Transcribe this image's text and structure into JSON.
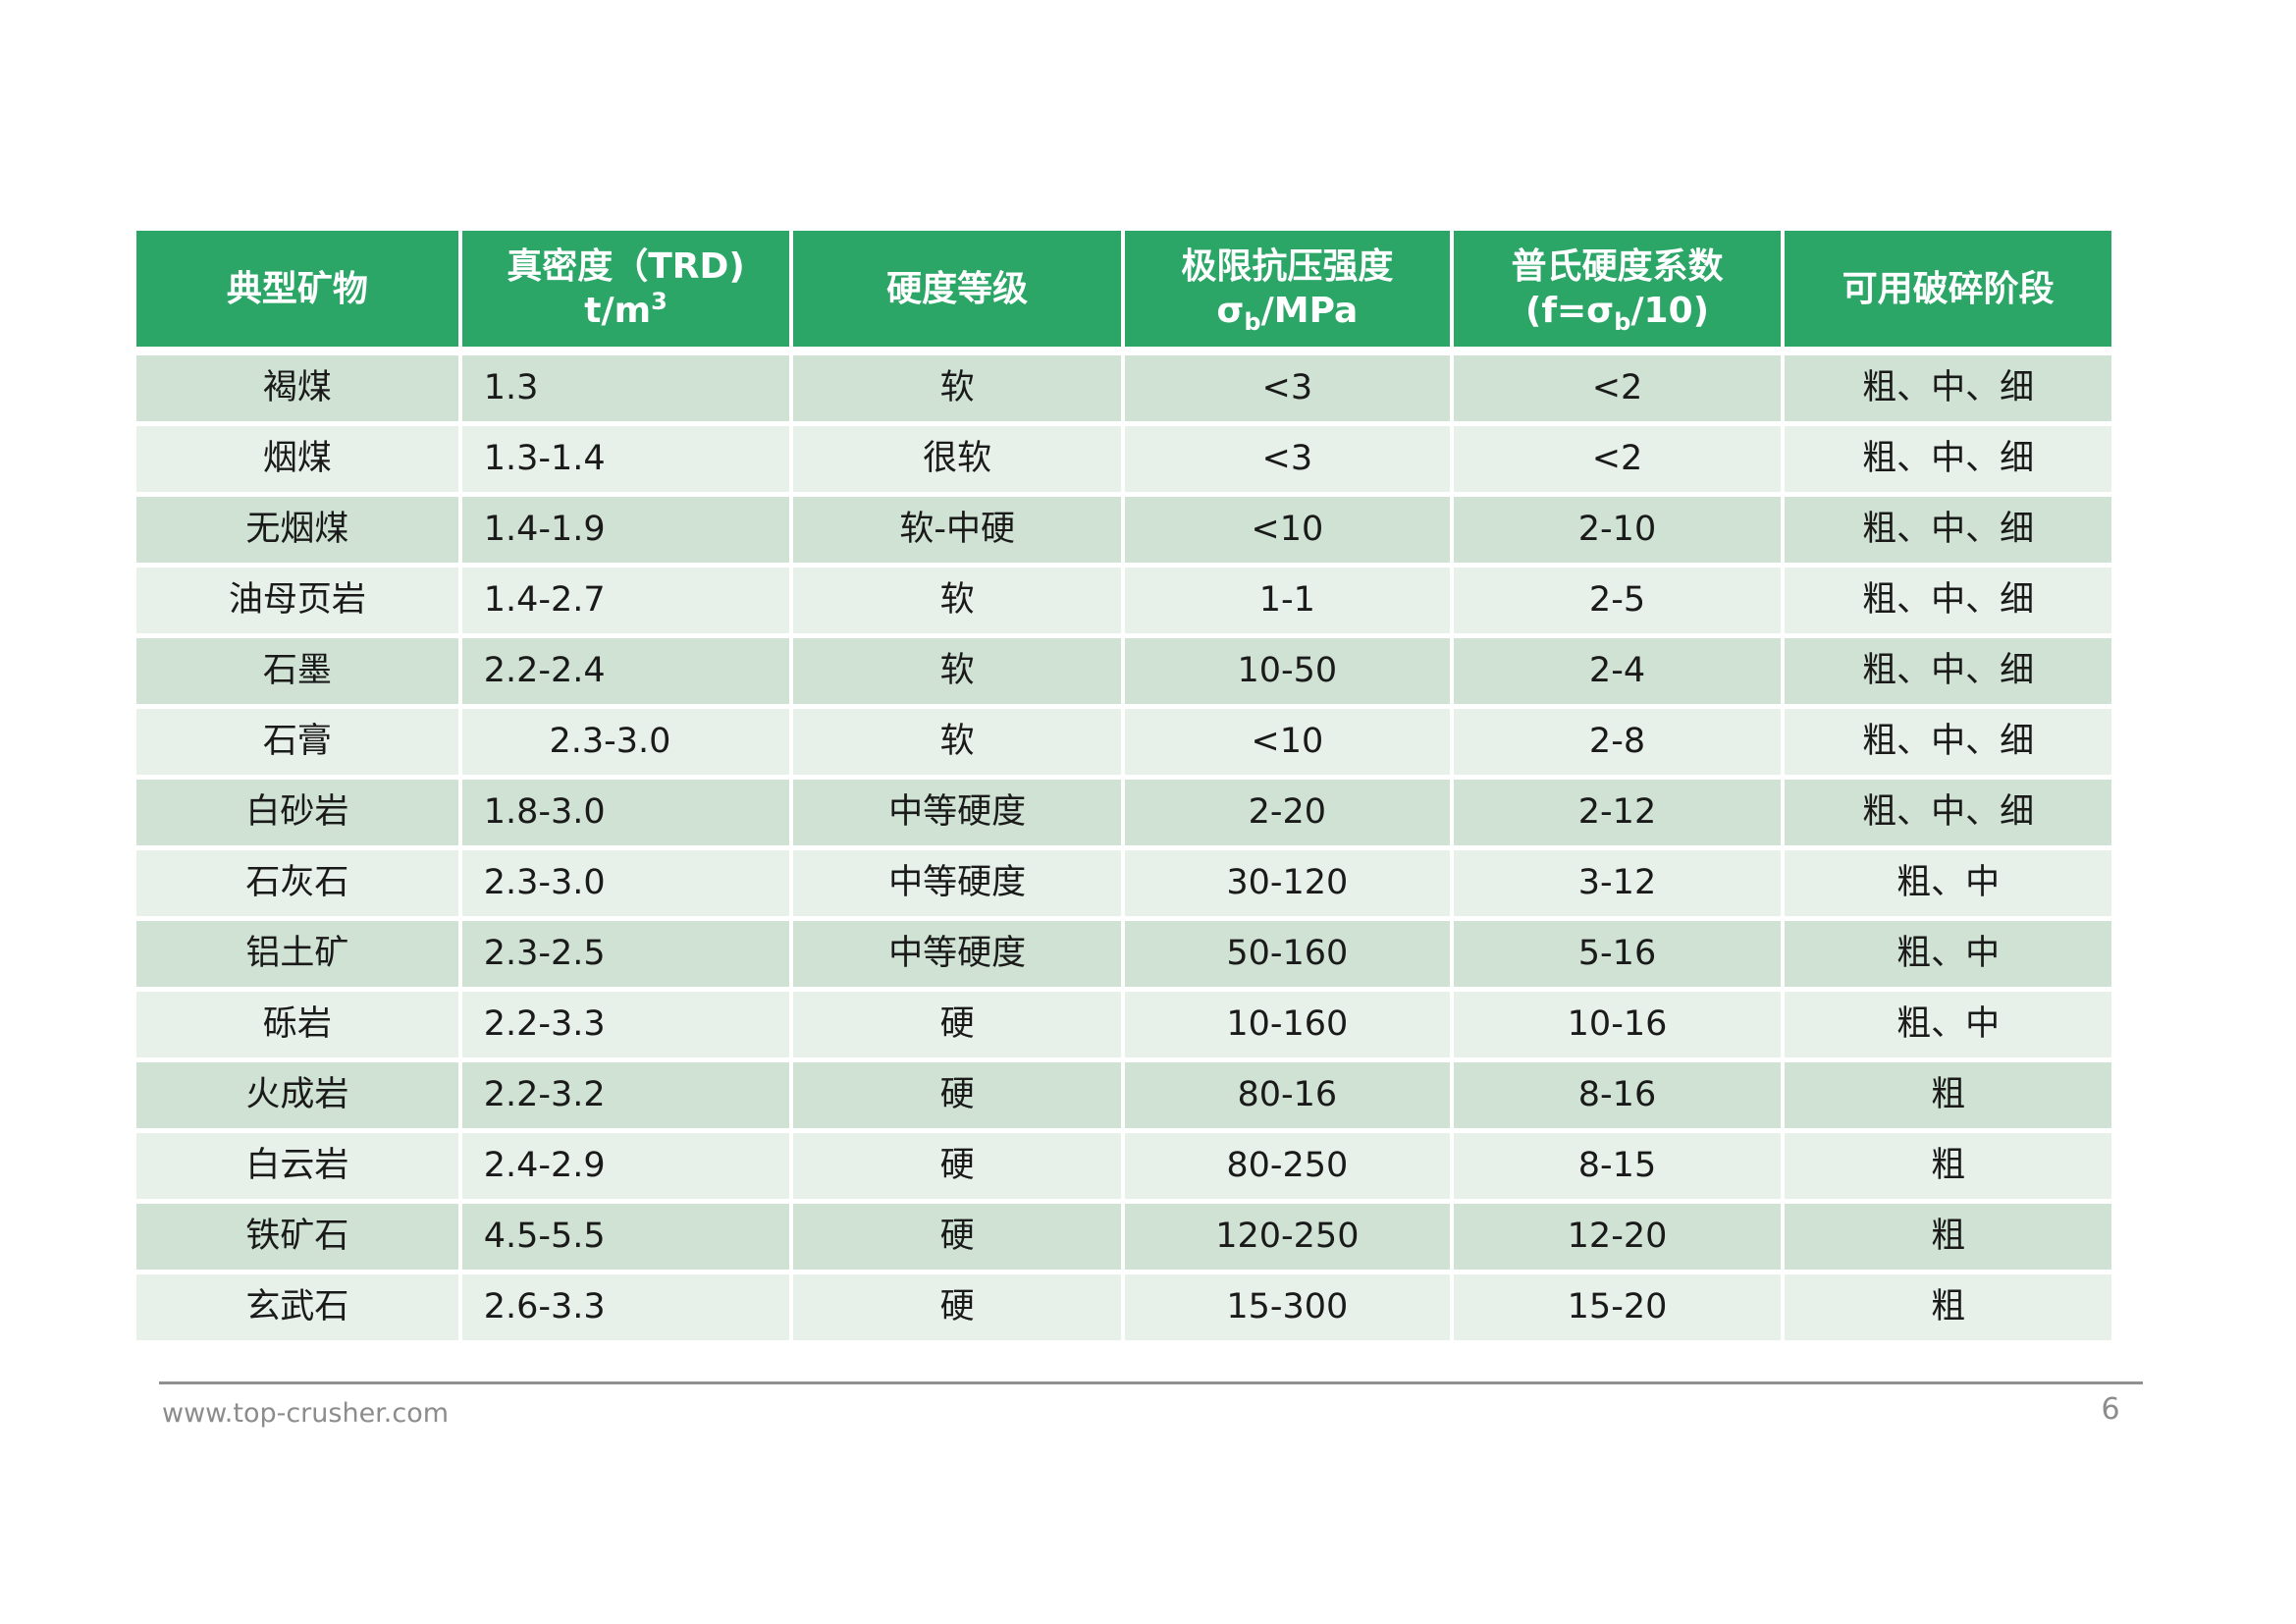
{
  "colors": {
    "header_bg": "#2ba667",
    "header_text": "#ffffff",
    "row_odd": "#cfe2d3",
    "row_even": "#e7f0e9",
    "body_text": "#1a1a1a",
    "footer_text": "#8c8c8c",
    "footer_line": "#909090"
  },
  "table": {
    "headers": [
      {
        "line1": "典型矿物"
      },
      {
        "line1": "真密度（TRD)",
        "line2": [
          {
            "t": "t/m"
          },
          {
            "t": "3",
            "pos": "sup"
          }
        ]
      },
      {
        "line1": "硬度等级"
      },
      {
        "line1": "极限抗压强度",
        "line2": [
          {
            "t": "σ"
          },
          {
            "t": "b",
            "pos": "sub"
          },
          {
            "t": "/MPa"
          }
        ]
      },
      {
        "line1": "普氏硬度系数",
        "line2": [
          {
            "t": "(f=σ"
          },
          {
            "t": "b",
            "pos": "sub"
          },
          {
            "t": "/10)"
          }
        ]
      },
      {
        "line1": "可用破碎阶段"
      }
    ],
    "rows": [
      [
        "褐煤",
        "1.3",
        "软",
        "<3",
        "<2",
        "粗、中、细"
      ],
      [
        "烟煤",
        "1.3-1.4",
        "很软",
        "<3",
        "<2",
        "粗、中、细"
      ],
      [
        "无烟煤",
        "1.4-1.9",
        "软-中硬",
        "<10",
        "2-10",
        "粗、中、细"
      ],
      [
        "油母页岩",
        "1.4-2.7",
        "软",
        "1-1",
        "2-5",
        "粗、中、细"
      ],
      [
        "石墨",
        "2.2-2.4",
        "软",
        "10-50",
        "2-4",
        "粗、中、细"
      ],
      [
        "石膏",
        "      2.3-3.0",
        "软",
        "<10",
        "2-8",
        "粗、中、细"
      ],
      [
        "白砂岩",
        "1.8-3.0",
        "中等硬度",
        "2-20",
        "2-12",
        "粗、中、细"
      ],
      [
        "石灰石",
        "2.3-3.0",
        "中等硬度",
        "30-120",
        "3-12",
        "粗、中"
      ],
      [
        "铝土矿",
        "2.3-2.5",
        "中等硬度",
        "50-160",
        "5-16",
        "粗、中"
      ],
      [
        "砾岩",
        "2.2-3.3",
        "硬",
        "10-160",
        "10-16",
        "粗、中"
      ],
      [
        "火成岩",
        "2.2-3.2",
        "硬",
        "80-16",
        "8-16",
        "粗"
      ],
      [
        "白云岩",
        "2.4-2.9",
        "硬",
        "80-250",
        "8-15",
        "粗"
      ],
      [
        "铁矿石",
        "4.5-5.5",
        "硬",
        "120-250",
        "12-20",
        "粗"
      ],
      [
        "玄武石",
        "2.6-3.3",
        "硬",
        "15-300",
        "15-20",
        "粗"
      ]
    ]
  },
  "footer": {
    "url": "www.top-crusher.com",
    "page_number": "6"
  }
}
